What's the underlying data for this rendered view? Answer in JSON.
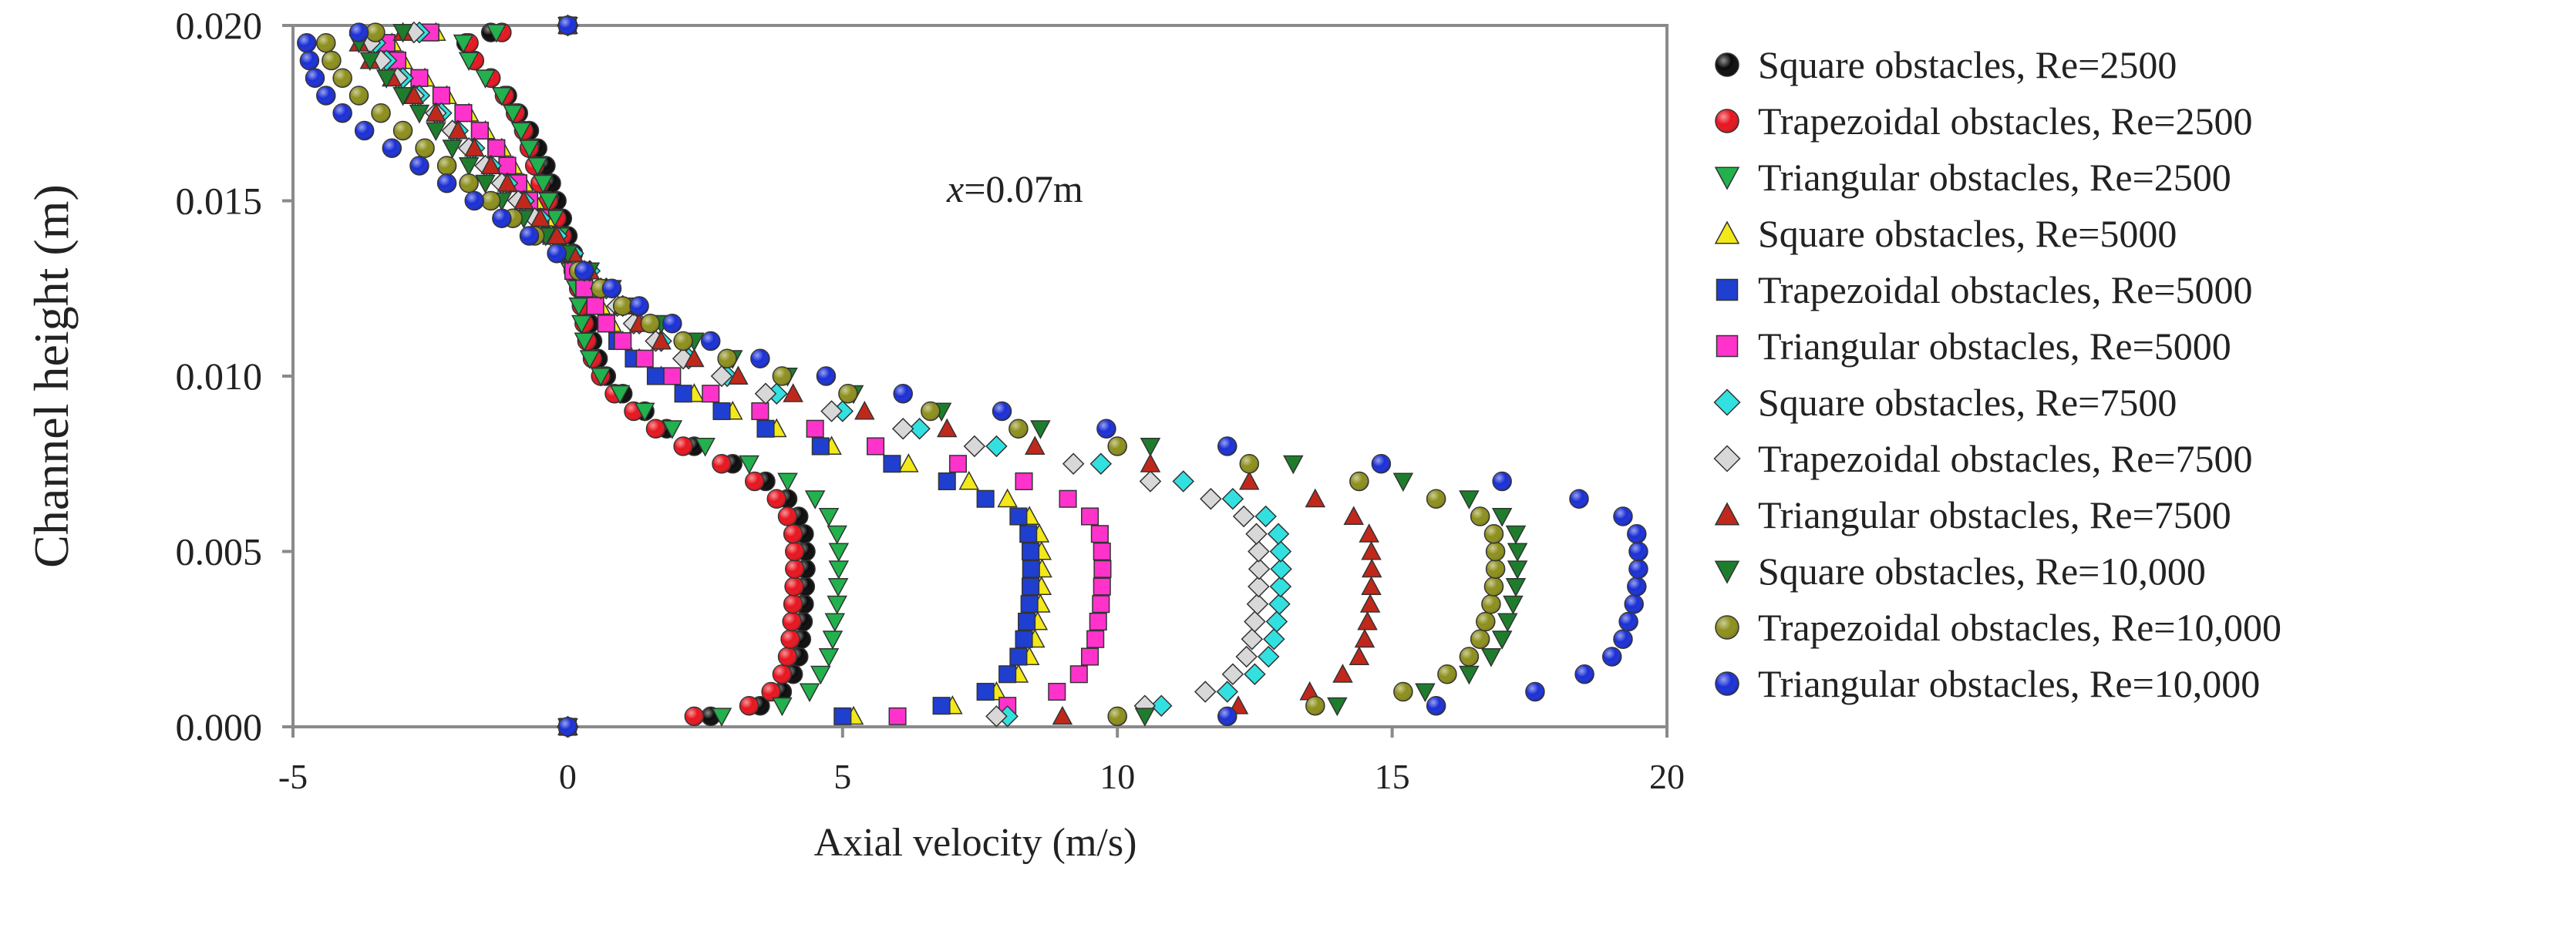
{
  "chart_data": {
    "type": "scatter",
    "title": "",
    "annotation": {
      "prefix": "x",
      "text": "=0.07m"
    },
    "xlabel": "Axial velocity (m/s)",
    "ylabel": "Channel height (m)",
    "xlim": [
      -5,
      20
    ],
    "ylim": [
      0,
      0.02
    ],
    "x_ticks": [
      -5,
      0,
      5,
      10,
      15,
      20
    ],
    "x_tick_labels": [
      "-5",
      "0",
      "5",
      "10",
      "15",
      "20"
    ],
    "y_ticks": [
      0,
      0.005,
      0.01,
      0.015,
      0.02
    ],
    "y_tick_labels": [
      "0.000",
      "0.005",
      "0.010",
      "0.015",
      "0.020"
    ],
    "grid": false,
    "legend_position": "right",
    "y_samples": [
      0,
      0.0003,
      0.0006,
      0.001,
      0.0015,
      0.002,
      0.0025,
      0.003,
      0.0035,
      0.004,
      0.0045,
      0.005,
      0.0055,
      0.006,
      0.0065,
      0.007,
      0.0075,
      0.008,
      0.0085,
      0.009,
      0.0095,
      0.01,
      0.0105,
      0.011,
      0.0115,
      0.012,
      0.0125,
      0.013,
      0.0135,
      0.014,
      0.0145,
      0.015,
      0.0155,
      0.016,
      0.0165,
      0.017,
      0.0175,
      0.018,
      0.0185,
      0.019,
      0.0195,
      0.0198,
      0.02
    ],
    "series": [
      {
        "name": "Square obstacles, Re=2500",
        "marker": "circle",
        "color": "#0a0a0a",
        "values": [
          0,
          2.6,
          3.5,
          3.9,
          4.1,
          4.2,
          4.25,
          4.28,
          4.3,
          4.32,
          4.33,
          4.33,
          4.3,
          4.2,
          4.0,
          3.6,
          3.0,
          2.3,
          1.8,
          1.4,
          1.0,
          0.7,
          0.55,
          0.45,
          0.4,
          0.35,
          0.3,
          0.2,
          0.1,
          0.0,
          -0.1,
          -0.2,
          -0.3,
          -0.4,
          -0.55,
          -0.7,
          -0.9,
          -1.1,
          -1.4,
          -1.7,
          -1.85,
          -1.4,
          0
        ]
      },
      {
        "name": "Trapezoidal obstacles, Re=2500",
        "marker": "circle",
        "color": "#e8141e",
        "values": [
          0,
          2.3,
          3.3,
          3.7,
          3.9,
          4.0,
          4.05,
          4.08,
          4.1,
          4.12,
          4.13,
          4.13,
          4.1,
          4.0,
          3.8,
          3.4,
          2.8,
          2.1,
          1.6,
          1.2,
          0.85,
          0.6,
          0.45,
          0.35,
          0.3,
          0.25,
          0.2,
          0.1,
          0.0,
          -0.1,
          -0.2,
          -0.35,
          -0.5,
          -0.6,
          -0.7,
          -0.8,
          -0.95,
          -1.15,
          -1.4,
          -1.7,
          -1.8,
          -1.2,
          0
        ]
      },
      {
        "name": "Triangular obstacles, Re=2500",
        "marker": "tri-down",
        "color": "#22b14c",
        "values": [
          0,
          2.8,
          3.9,
          4.4,
          4.6,
          4.75,
          4.82,
          4.86,
          4.9,
          4.92,
          4.93,
          4.93,
          4.9,
          4.75,
          4.5,
          4.0,
          3.3,
          2.5,
          1.9,
          1.4,
          0.95,
          0.6,
          0.4,
          0.3,
          0.25,
          0.2,
          0.15,
          0.05,
          -0.05,
          -0.15,
          -0.25,
          -0.35,
          -0.45,
          -0.55,
          -0.7,
          -0.85,
          -1.0,
          -1.2,
          -1.5,
          -1.8,
          -1.9,
          -1.3,
          0
        ]
      },
      {
        "name": "Square obstacles, Re=5000",
        "marker": "tri-up",
        "color": "#f2e81a",
        "values": [
          0,
          5.2,
          7.0,
          7.8,
          8.2,
          8.4,
          8.5,
          8.55,
          8.6,
          8.62,
          8.63,
          8.62,
          8.58,
          8.4,
          8.0,
          7.3,
          6.2,
          4.8,
          3.8,
          3.0,
          2.3,
          1.7,
          1.3,
          1.0,
          0.8,
          0.6,
          0.4,
          0.2,
          0.0,
          -0.2,
          -0.4,
          -0.6,
          -0.8,
          -1.0,
          -1.2,
          -1.5,
          -1.8,
          -2.2,
          -2.6,
          -3.0,
          -3.2,
          -2.4,
          0
        ]
      },
      {
        "name": "Trapezoidal obstacles, Re=5000",
        "marker": "square",
        "color": "#1f3fd0",
        "values": [
          0,
          5.0,
          6.8,
          7.6,
          8.0,
          8.2,
          8.3,
          8.35,
          8.4,
          8.42,
          8.43,
          8.42,
          8.38,
          8.2,
          7.6,
          6.9,
          5.9,
          4.6,
          3.6,
          2.8,
          2.1,
          1.6,
          1.2,
          0.9,
          0.7,
          0.5,
          0.3,
          0.1,
          -0.1,
          -0.3,
          -0.5,
          -0.7,
          -0.9,
          -1.1,
          -1.3,
          -1.6,
          -1.9,
          -2.3,
          -2.7,
          -3.1,
          -3.3,
          -2.5,
          0
        ]
      },
      {
        "name": "Triangular obstacles, Re=5000",
        "marker": "square",
        "color": "#ff33cc",
        "values": [
          0,
          6.0,
          8.0,
          8.9,
          9.3,
          9.5,
          9.6,
          9.65,
          9.7,
          9.72,
          9.73,
          9.72,
          9.68,
          9.5,
          9.1,
          8.3,
          7.1,
          5.6,
          4.5,
          3.5,
          2.6,
          1.9,
          1.4,
          1.0,
          0.7,
          0.5,
          0.3,
          0.1,
          -0.1,
          -0.3,
          -0.5,
          -0.7,
          -0.9,
          -1.1,
          -1.3,
          -1.6,
          -1.9,
          -2.3,
          -2.7,
          -3.1,
          -3.3,
          -2.5,
          0
        ]
      },
      {
        "name": "Square obstacles, Re=7500",
        "marker": "diamond",
        "color": "#33e0e0",
        "values": [
          0,
          8.0,
          10.8,
          12.0,
          12.5,
          12.75,
          12.85,
          12.9,
          12.95,
          12.97,
          12.98,
          12.97,
          12.93,
          12.7,
          12.1,
          11.2,
          9.7,
          7.8,
          6.4,
          5.0,
          3.8,
          2.9,
          2.2,
          1.7,
          1.3,
          1.0,
          0.7,
          0.4,
          0.1,
          -0.2,
          -0.5,
          -0.8,
          -1.1,
          -1.4,
          -1.7,
          -2.0,
          -2.3,
          -2.7,
          -3.0,
          -3.3,
          -3.5,
          -2.7,
          0
        ]
      },
      {
        "name": "Trapezoidal obstacles, Re=7500",
        "marker": "diamond",
        "color": "#d8d8d8",
        "values": [
          0,
          7.8,
          10.5,
          11.6,
          12.1,
          12.35,
          12.45,
          12.5,
          12.55,
          12.57,
          12.58,
          12.57,
          12.53,
          12.3,
          11.7,
          10.6,
          9.2,
          7.4,
          6.1,
          4.8,
          3.6,
          2.8,
          2.1,
          1.6,
          1.2,
          0.9,
          0.6,
          0.3,
          0.0,
          -0.3,
          -0.6,
          -0.9,
          -1.2,
          -1.5,
          -1.8,
          -2.1,
          -2.4,
          -2.8,
          -3.1,
          -3.4,
          -3.6,
          -2.8,
          0
        ]
      },
      {
        "name": "Triangular obstacles, Re=7500",
        "marker": "tri-up",
        "color": "#c0281c",
        "values": [
          0,
          9.0,
          12.2,
          13.5,
          14.1,
          14.4,
          14.5,
          14.55,
          14.6,
          14.62,
          14.63,
          14.62,
          14.58,
          14.3,
          13.6,
          12.4,
          10.6,
          8.5,
          6.9,
          5.4,
          4.1,
          3.1,
          2.3,
          1.7,
          1.3,
          1.0,
          0.7,
          0.4,
          0.1,
          -0.2,
          -0.5,
          -0.8,
          -1.1,
          -1.4,
          -1.7,
          -2.0,
          -2.4,
          -2.8,
          -3.2,
          -3.6,
          -3.8,
          -3.0,
          0
        ]
      },
      {
        "name": "Square obstacles, Re=10,000",
        "marker": "tri-down",
        "color": "#1e7d2c",
        "values": [
          0,
          10.5,
          14.0,
          15.6,
          16.4,
          16.8,
          17.0,
          17.1,
          17.2,
          17.25,
          17.28,
          17.28,
          17.25,
          17.0,
          16.4,
          15.2,
          13.2,
          10.6,
          8.6,
          6.8,
          5.2,
          4.0,
          3.0,
          2.3,
          1.7,
          1.2,
          0.8,
          0.4,
          0.0,
          -0.4,
          -0.8,
          -1.2,
          -1.5,
          -1.8,
          -2.1,
          -2.4,
          -2.7,
          -3.0,
          -3.3,
          -3.6,
          -3.8,
          -3.0,
          0
        ]
      },
      {
        "name": "Trapezoidal obstacles, Re=10,000",
        "marker": "circle",
        "color": "#8d8f1c",
        "values": [
          0,
          10.0,
          13.6,
          15.2,
          16.0,
          16.4,
          16.6,
          16.7,
          16.8,
          16.85,
          16.88,
          16.88,
          16.85,
          16.6,
          15.8,
          14.4,
          12.4,
          10.0,
          8.2,
          6.6,
          5.1,
          3.9,
          2.9,
          2.1,
          1.5,
          1.0,
          0.6,
          0.2,
          -0.2,
          -0.6,
          -1.0,
          -1.4,
          -1.8,
          -2.2,
          -2.6,
          -3.0,
          -3.4,
          -3.8,
          -4.1,
          -4.3,
          -4.4,
          -3.5,
          0
        ]
      },
      {
        "name": "Triangular obstacles, Re=10,000",
        "marker": "circle",
        "color": "#1a2fd6",
        "values": [
          0,
          12.0,
          15.8,
          17.6,
          18.5,
          19.0,
          19.2,
          19.3,
          19.4,
          19.45,
          19.48,
          19.48,
          19.45,
          19.2,
          18.4,
          17.0,
          14.8,
          12.0,
          9.8,
          7.9,
          6.1,
          4.7,
          3.5,
          2.6,
          1.9,
          1.3,
          0.8,
          0.3,
          -0.2,
          -0.7,
          -1.2,
          -1.7,
          -2.2,
          -2.7,
          -3.2,
          -3.7,
          -4.1,
          -4.4,
          -4.6,
          -4.7,
          -4.75,
          -3.8,
          0
        ]
      }
    ]
  }
}
